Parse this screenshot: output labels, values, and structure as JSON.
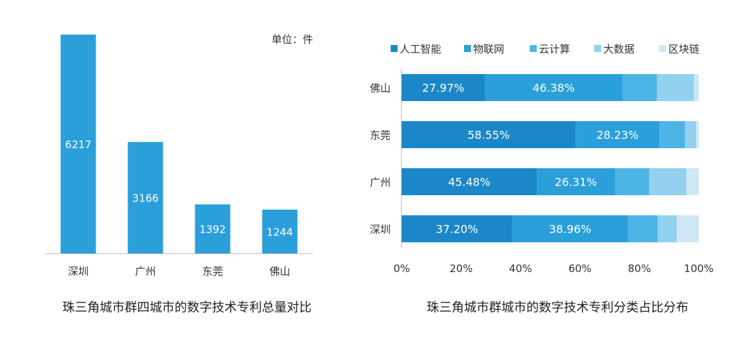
{
  "chart_data": [
    {
      "type": "bar",
      "title": "珠三角城市群四城市的数字技术专利总量对比",
      "unit_label": "单位：件",
      "categories": [
        "深圳",
        "广州",
        "东莞",
        "佛山"
      ],
      "values": [
        6217,
        3166,
        1392,
        1244
      ],
      "value_labels": [
        "6217",
        "3166",
        "1392",
        "1244"
      ],
      "ylim": [
        0,
        6500
      ],
      "grid": false,
      "color": "#2B9FD9"
    },
    {
      "type": "bar",
      "orientation": "horizontal",
      "stacked": "percent",
      "title": "珠三角城市群城市的数字技术专利分类占比分布",
      "categories": [
        "佛山",
        "东莞",
        "广州",
        "深圳"
      ],
      "series": [
        {
          "name": "人工智能",
          "color": "#1B87C9",
          "values": [
            27.97,
            58.55,
            45.48,
            37.2
          ],
          "labels": [
            "27.97%",
            "58.55%",
            "45.48%",
            "37.20%"
          ]
        },
        {
          "name": "物联网",
          "color": "#2B9FD9",
          "values": [
            46.38,
            28.23,
            26.31,
            38.96
          ],
          "labels": [
            "46.38%",
            "28.23%",
            "26.31%",
            "38.96%"
          ]
        },
        {
          "name": "云计算",
          "color": "#4DB4E6",
          "values": [
            11.6,
            8.6,
            11.6,
            10.0
          ],
          "labels": [
            "",
            "",
            "",
            ""
          ]
        },
        {
          "name": "大数据",
          "color": "#92D1EF",
          "values": [
            12.4,
            3.7,
            12.4,
            6.4
          ],
          "labels": [
            "",
            "",
            "",
            ""
          ]
        },
        {
          "name": "区块链",
          "color": "#CFE7F4",
          "values": [
            1.65,
            0.92,
            4.21,
            7.44
          ],
          "labels": [
            "",
            "",
            "",
            ""
          ]
        }
      ],
      "xlim": [
        0,
        100
      ],
      "xticks": [
        "0%",
        "20%",
        "40%",
        "60%",
        "80%",
        "100%"
      ],
      "legend_position": "top",
      "grid": false
    }
  ]
}
